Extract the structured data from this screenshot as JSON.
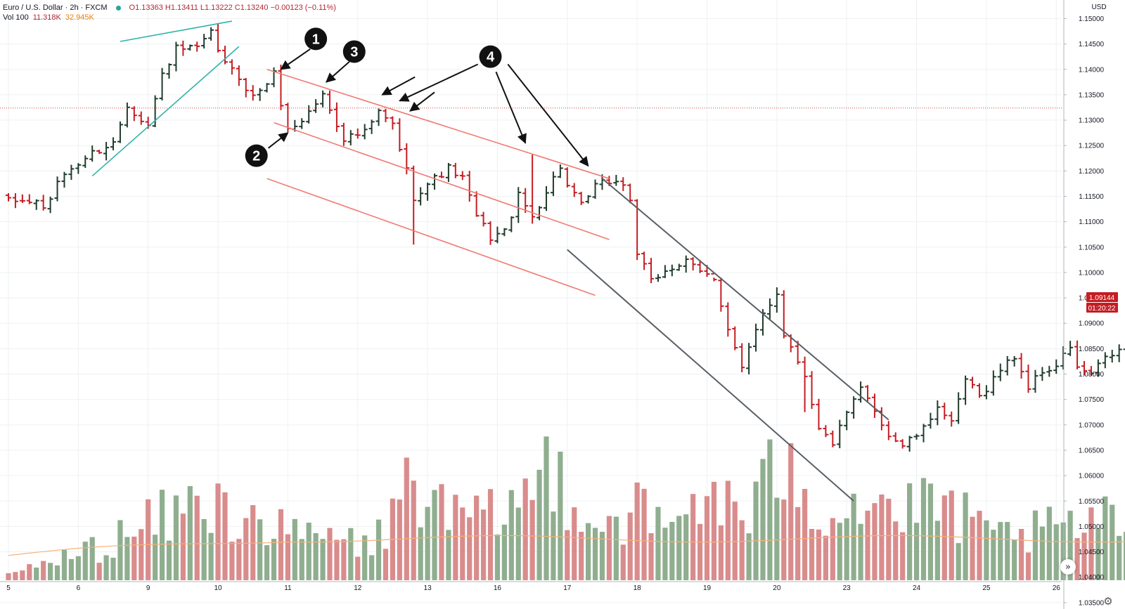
{
  "legend": {
    "symbol": "Euro / U.S. Dollar · 2h · FXCM",
    "ohlc": "O1.13363  H1.13411  L1.13222  C1.13240  −0.00123 (−0.11%)",
    "vol_label": "Vol 100",
    "vol_value": "11.318K",
    "vol_ma": "32.945K"
  },
  "badges": {
    "price": "1.09144",
    "countdown": "01:20:22"
  },
  "colors": {
    "up": "#1f3b2c",
    "down": "#c41d22",
    "vol_up": "#8fae8f",
    "vol_down": "#d98c8c",
    "teal_line": "#2db3a8",
    "red_channel": "#f07a72",
    "grey_channel": "#5a5f66",
    "dotted_level": "#d04040",
    "vol_ma": "#f5b27a"
  },
  "chart_data": {
    "type": "ohlc-bar",
    "title": "",
    "ylabel": "USD",
    "xlabel": "",
    "ylim": [
      1.031,
      1.152
    ],
    "grid": true,
    "y_ticks": [
      "1.15000",
      "1.14500",
      "1.14000",
      "1.13500",
      "1.13000",
      "1.12500",
      "1.12000",
      "1.11500",
      "1.11000",
      "1.10500",
      "1.10000",
      "1.09500",
      "1.09000",
      "1.08500",
      "1.08000",
      "1.07500",
      "1.07000",
      "1.06500",
      "1.06000",
      "1.05500",
      "1.05000",
      "1.04500",
      "1.04000",
      "1.03500"
    ],
    "x_ticks": [
      {
        "label": "5",
        "bar": 0
      },
      {
        "label": "6",
        "bar": 10
      },
      {
        "label": "9",
        "bar": 20
      },
      {
        "label": "10",
        "bar": 30
      },
      {
        "label": "11",
        "bar": 40
      },
      {
        "label": "12",
        "bar": 50
      },
      {
        "label": "13",
        "bar": 60
      },
      {
        "label": "16",
        "bar": 70
      },
      {
        "label": "17",
        "bar": 80
      },
      {
        "label": "18",
        "bar": 90
      },
      {
        "label": "19",
        "bar": 100
      },
      {
        "label": "20",
        "bar": 110
      },
      {
        "label": "23",
        "bar": 120
      },
      {
        "label": "24",
        "bar": 130
      },
      {
        "label": "25",
        "bar": 140
      },
      {
        "label": "26",
        "bar": 150
      }
    ],
    "anchors": [
      {
        "bar": 0,
        "p": 1.114
      },
      {
        "bar": 4,
        "p": 1.114
      },
      {
        "bar": 5,
        "p": 1.1125
      },
      {
        "bar": 8,
        "p": 1.1195
      },
      {
        "bar": 12,
        "p": 1.1235
      },
      {
        "bar": 15,
        "p": 1.1255
      },
      {
        "bar": 17,
        "p": 1.133
      },
      {
        "bar": 20,
        "p": 1.129
      },
      {
        "bar": 22,
        "p": 1.139
      },
      {
        "bar": 24,
        "p": 1.144
      },
      {
        "bar": 27,
        "p": 1.144
      },
      {
        "bar": 29,
        "p": 1.147
      },
      {
        "bar": 31,
        "p": 1.141
      },
      {
        "bar": 33,
        "p": 1.1385
      },
      {
        "bar": 35,
        "p": 1.1345
      },
      {
        "bar": 38,
        "p": 1.139
      },
      {
        "bar": 40,
        "p": 1.128
      },
      {
        "bar": 42,
        "p": 1.13
      },
      {
        "bar": 45,
        "p": 1.135
      },
      {
        "bar": 48,
        "p": 1.1265
      },
      {
        "bar": 51,
        "p": 1.1275
      },
      {
        "bar": 53,
        "p": 1.1315
      },
      {
        "bar": 55,
        "p": 1.129
      },
      {
        "bar": 57,
        "p": 1.12
      },
      {
        "bar": 58,
        "p": 1.115
      },
      {
        "bar": 60,
        "p": 1.1175
      },
      {
        "bar": 63,
        "p": 1.1205
      },
      {
        "bar": 65,
        "p": 1.1185
      },
      {
        "bar": 67,
        "p": 1.111
      },
      {
        "bar": 69,
        "p": 1.107
      },
      {
        "bar": 71,
        "p": 1.108
      },
      {
        "bar": 73,
        "p": 1.115
      },
      {
        "bar": 75,
        "p": 1.111
      },
      {
        "bar": 77,
        "p": 1.116
      },
      {
        "bar": 79,
        "p": 1.121
      },
      {
        "bar": 80,
        "p": 1.117
      },
      {
        "bar": 82,
        "p": 1.113
      },
      {
        "bar": 84,
        "p": 1.117
      },
      {
        "bar": 86,
        "p": 1.118
      },
      {
        "bar": 88,
        "p": 1.1175
      },
      {
        "bar": 89,
        "p": 1.114
      },
      {
        "bar": 90,
        "p": 1.104
      },
      {
        "bar": 92,
        "p": 1.098
      },
      {
        "bar": 94,
        "p": 1.1005
      },
      {
        "bar": 97,
        "p": 1.102
      },
      {
        "bar": 99,
        "p": 1.1
      },
      {
        "bar": 101,
        "p": 1.099
      },
      {
        "bar": 103,
        "p": 1.089
      },
      {
        "bar": 105,
        "p": 1.081
      },
      {
        "bar": 108,
        "p": 1.092
      },
      {
        "bar": 110,
        "p": 1.096
      },
      {
        "bar": 111,
        "p": 1.088
      },
      {
        "bar": 114,
        "p": 1.08
      },
      {
        "bar": 116,
        "p": 1.069
      },
      {
        "bar": 118,
        "p": 1.0665
      },
      {
        "bar": 120,
        "p": 1.072
      },
      {
        "bar": 122,
        "p": 1.077
      },
      {
        "bar": 124,
        "p": 1.073
      },
      {
        "bar": 126,
        "p": 1.068
      },
      {
        "bar": 128,
        "p": 1.066
      },
      {
        "bar": 131,
        "p": 1.069
      },
      {
        "bar": 133,
        "p": 1.074
      },
      {
        "bar": 135,
        "p": 1.07
      },
      {
        "bar": 137,
        "p": 1.079
      },
      {
        "bar": 139,
        "p": 1.0755
      },
      {
        "bar": 142,
        "p": 1.081
      },
      {
        "bar": 144,
        "p": 1.0835
      },
      {
        "bar": 146,
        "p": 1.0775
      },
      {
        "bar": 148,
        "p": 1.0805
      },
      {
        "bar": 150,
        "p": 1.0815
      },
      {
        "bar": 152,
        "p": 1.0855
      },
      {
        "bar": 153,
        "p": 1.081
      },
      {
        "bar": 155,
        "p": 1.08
      },
      {
        "bar": 157,
        "p": 1.083
      },
      {
        "bar": 160,
        "p": 1.0855
      },
      {
        "bar": 162,
        "p": 1.088
      },
      {
        "bar": 164,
        "p": 1.09
      },
      {
        "bar": 165,
        "p": 1.0914
      }
    ],
    "volume_profile": [
      {
        "bar": 0,
        "v": 0.3
      },
      {
        "bar": 10,
        "v": 1.2
      },
      {
        "bar": 18,
        "v": 2.2
      },
      {
        "bar": 26,
        "v": 3.4
      },
      {
        "bar": 34,
        "v": 3.2
      },
      {
        "bar": 40,
        "v": 2.0
      },
      {
        "bar": 46,
        "v": 2.0
      },
      {
        "bar": 52,
        "v": 1.5
      },
      {
        "bar": 56,
        "v": 3.5
      },
      {
        "bar": 58,
        "v": 5.0
      },
      {
        "bar": 62,
        "v": 3.0
      },
      {
        "bar": 68,
        "v": 2.6
      },
      {
        "bar": 74,
        "v": 3.8
      },
      {
        "bar": 78,
        "v": 5.5
      },
      {
        "bar": 84,
        "v": 2.6
      },
      {
        "bar": 90,
        "v": 3.2
      },
      {
        "bar": 94,
        "v": 2.2
      },
      {
        "bar": 100,
        "v": 4.2
      },
      {
        "bar": 106,
        "v": 2.6
      },
      {
        "bar": 112,
        "v": 6.5
      },
      {
        "bar": 116,
        "v": 3.0
      },
      {
        "bar": 122,
        "v": 3.8
      },
      {
        "bar": 128,
        "v": 3.0
      },
      {
        "bar": 134,
        "v": 3.4
      },
      {
        "bar": 140,
        "v": 2.0
      },
      {
        "bar": 148,
        "v": 2.2
      },
      {
        "bar": 156,
        "v": 2.6
      },
      {
        "bar": 162,
        "v": 2.6
      },
      {
        "bar": 165,
        "v": 1.2
      }
    ],
    "volume_ma_level": 1.9,
    "trend_lines": [
      {
        "group": "teal",
        "a": [
          16,
          1.1455
        ],
        "b": [
          32,
          1.1495
        ]
      },
      {
        "group": "teal",
        "a": [
          12,
          1.119
        ],
        "b": [
          33,
          1.1445
        ]
      },
      {
        "group": "red",
        "a": [
          37,
          1.14
        ],
        "b": [
          86,
          1.1185
        ]
      },
      {
        "group": "red",
        "a": [
          38,
          1.1295
        ],
        "b": [
          86,
          1.1065
        ]
      },
      {
        "group": "red",
        "a": [
          37,
          1.1185
        ],
        "b": [
          84,
          1.0955
        ]
      },
      {
        "group": "grey",
        "a": [
          85,
          1.1185
        ],
        "b": [
          126,
          1.071
        ]
      },
      {
        "group": "grey",
        "a": [
          80,
          1.1045
        ],
        "b": [
          121,
          1.055
        ]
      }
    ],
    "dotted_level": 1.1324,
    "annotations": [
      {
        "label": "1",
        "circle": [
          44,
          1.146
        ],
        "arrows": [
          [
            [
              43.2,
              1.144
            ],
            [
              39.0,
              1.14
            ]
          ]
        ]
      },
      {
        "label": "2",
        "circle": [
          35.5,
          1.123
        ],
        "arrows": [
          [
            [
              37.2,
              1.1245
            ],
            [
              40.0,
              1.1275
            ]
          ]
        ]
      },
      {
        "label": "3",
        "circle": [
          49.5,
          1.1435
        ],
        "arrows": [
          [
            [
              48.8,
              1.1415
            ],
            [
              45.5,
              1.1375
            ]
          ]
        ]
      },
      {
        "label": "4",
        "circle": [
          69,
          1.1425
        ],
        "arrows": [
          [
            [
              58.2,
              1.1385
            ],
            [
              53.5,
              1.135
            ]
          ],
          [
            [
              67.2,
              1.141
            ],
            [
              56.0,
              1.1338
            ]
          ],
          [
            [
              61.0,
              1.1355
            ],
            [
              57.5,
              1.1318
            ]
          ],
          [
            [
              69.8,
              1.1395
            ],
            [
              74.0,
              1.1255
            ]
          ],
          [
            [
              71.5,
              1.141
            ],
            [
              83.0,
              1.121
            ]
          ]
        ]
      }
    ]
  }
}
